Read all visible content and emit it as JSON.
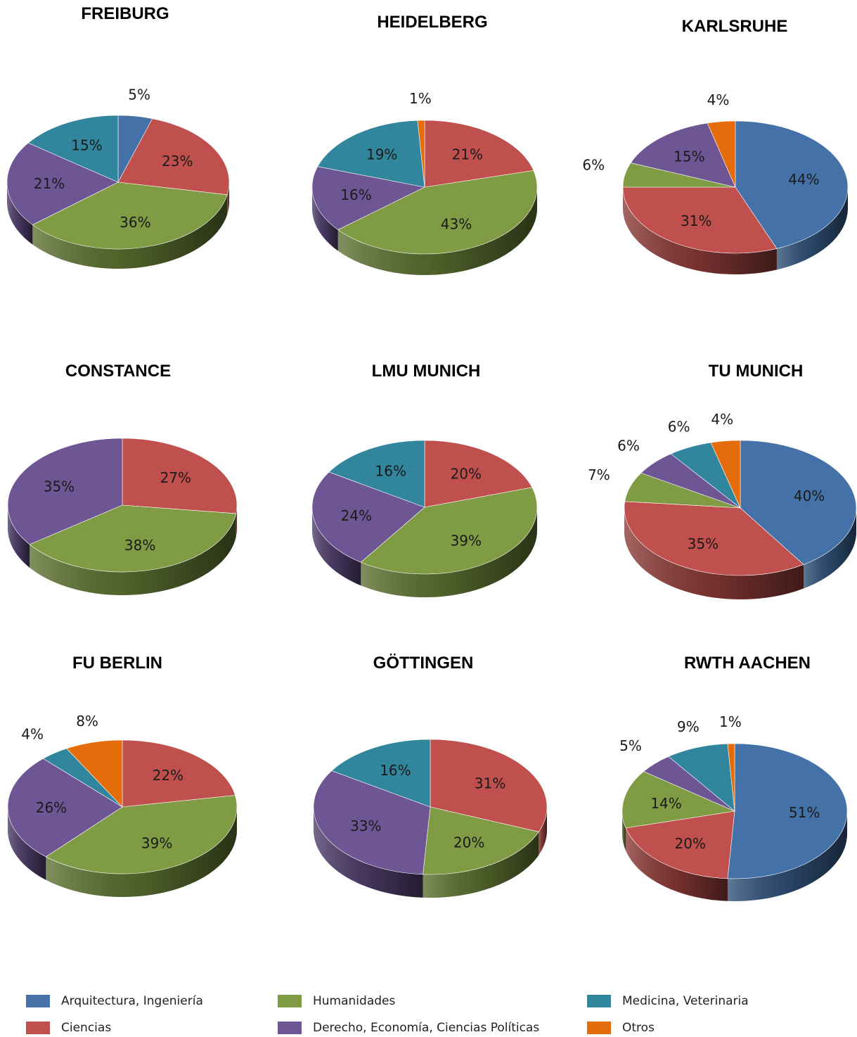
{
  "legend": [
    {
      "key": "ing",
      "label": "Arquitectura, Ingeniería",
      "color": "#4472a8"
    },
    {
      "key": "hum",
      "label": "Humanidades",
      "color": "#7f9b43"
    },
    {
      "key": "med",
      "label": "Medicina, Veterinaria",
      "color": "#31859c"
    },
    {
      "key": "cie",
      "label": "Ciencias",
      "color": "#c0504d"
    },
    {
      "key": "der",
      "label": "Derecho, Economía, Ciencias Políticas",
      "color": "#6e5694"
    },
    {
      "key": "otr",
      "label": "Otros",
      "color": "#e46c0a"
    }
  ],
  "chart_data": [
    {
      "type": "pie",
      "title": "FREIBURG",
      "slices": [
        {
          "category": "Arquitectura, Ingeniería",
          "value": 5,
          "label": "5%"
        },
        {
          "category": "Ciencias",
          "value": 23,
          "label": "23%"
        },
        {
          "category": "Humanidades",
          "value": 36,
          "label": "36%"
        },
        {
          "category": "Derecho, Economía, Ciencias Políticas",
          "value": 21,
          "label": "21%"
        },
        {
          "category": "Medicina, Veterinaria",
          "value": 15,
          "label": "15%"
        }
      ]
    },
    {
      "type": "pie",
      "title": "HEIDELBERG",
      "slices": [
        {
          "category": "Ciencias",
          "value": 21,
          "label": "21%"
        },
        {
          "category": "Humanidades",
          "value": 43,
          "label": "43%"
        },
        {
          "category": "Derecho, Economía, Ciencias Políticas",
          "value": 16,
          "label": "16%"
        },
        {
          "category": "Medicina, Veterinaria",
          "value": 19,
          "label": "19%"
        },
        {
          "category": "Otros",
          "value": 1,
          "label": "1%"
        }
      ]
    },
    {
      "type": "pie",
      "title": "KARLSRUHE",
      "slices": [
        {
          "category": "Arquitectura, Ingeniería",
          "value": 44,
          "label": "44%"
        },
        {
          "category": "Ciencias",
          "value": 31,
          "label": "31%"
        },
        {
          "category": "Humanidades",
          "value": 6,
          "label": "6%"
        },
        {
          "category": "Derecho, Economía, Ciencias Políticas",
          "value": 15,
          "label": "15%"
        },
        {
          "category": "Otros",
          "value": 4,
          "label": "4%"
        }
      ]
    },
    {
      "type": "pie",
      "title": "CONSTANCE",
      "slices": [
        {
          "category": "Ciencias",
          "value": 27,
          "label": "27%"
        },
        {
          "category": "Humanidades",
          "value": 38,
          "label": "38%"
        },
        {
          "category": "Derecho, Economía, Ciencias Políticas",
          "value": 35,
          "label": "35%"
        }
      ]
    },
    {
      "type": "pie",
      "title": "LMU MUNICH",
      "slices": [
        {
          "category": "Ciencias",
          "value": 20,
          "label": "20%"
        },
        {
          "category": "Humanidades",
          "value": 39,
          "label": "39%"
        },
        {
          "category": "Derecho, Economía, Ciencias Políticas",
          "value": 24,
          "label": "24%"
        },
        {
          "category": "Medicina, Veterinaria",
          "value": 16,
          "label": "16%"
        }
      ]
    },
    {
      "type": "pie",
      "title": "TU MUNICH",
      "slices": [
        {
          "category": "Arquitectura, Ingeniería",
          "value": 40,
          "label": "40%"
        },
        {
          "category": "Ciencias",
          "value": 35,
          "label": "35%"
        },
        {
          "category": "Humanidades",
          "value": 7,
          "label": "7%"
        },
        {
          "category": "Derecho, Economía, Ciencias Políticas",
          "value": 6,
          "label": "6%"
        },
        {
          "category": "Medicina, Veterinaria",
          "value": 6,
          "label": "6%"
        },
        {
          "category": "Otros",
          "value": 4,
          "label": "4%"
        }
      ]
    },
    {
      "type": "pie",
      "title": "FU BERLIN",
      "slices": [
        {
          "category": "Ciencias",
          "value": 22,
          "label": "22%"
        },
        {
          "category": "Humanidades",
          "value": 39,
          "label": "39%"
        },
        {
          "category": "Derecho, Economía, Ciencias Políticas",
          "value": 26,
          "label": "26%"
        },
        {
          "category": "Medicina, Veterinaria",
          "value": 4,
          "label": "4%"
        },
        {
          "category": "Otros",
          "value": 8,
          "label": "8%"
        }
      ]
    },
    {
      "type": "pie",
      "title": "GÖTTINGEN",
      "slices": [
        {
          "category": "Ciencias",
          "value": 31,
          "label": "31%"
        },
        {
          "category": "Humanidades",
          "value": 20,
          "label": "20%"
        },
        {
          "category": "Derecho, Economía, Ciencias Políticas",
          "value": 33,
          "label": "33%"
        },
        {
          "category": "Medicina, Veterinaria",
          "value": 16,
          "label": "16%"
        }
      ]
    },
    {
      "type": "pie",
      "title": "RWTH AACHEN",
      "slices": [
        {
          "category": "Arquitectura, Ingeniería",
          "value": 51,
          "label": "51%"
        },
        {
          "category": "Ciencias",
          "value": 20,
          "label": "20%"
        },
        {
          "category": "Humanidades",
          "value": 14,
          "label": "14%"
        },
        {
          "category": "Derecho, Economía, Ciencias Políticas",
          "value": 5,
          "label": "5%"
        },
        {
          "category": "Medicina, Veterinaria",
          "value": 9,
          "label": "9%"
        },
        {
          "category": "Otros",
          "value": 1,
          "label": "1%"
        }
      ]
    }
  ]
}
